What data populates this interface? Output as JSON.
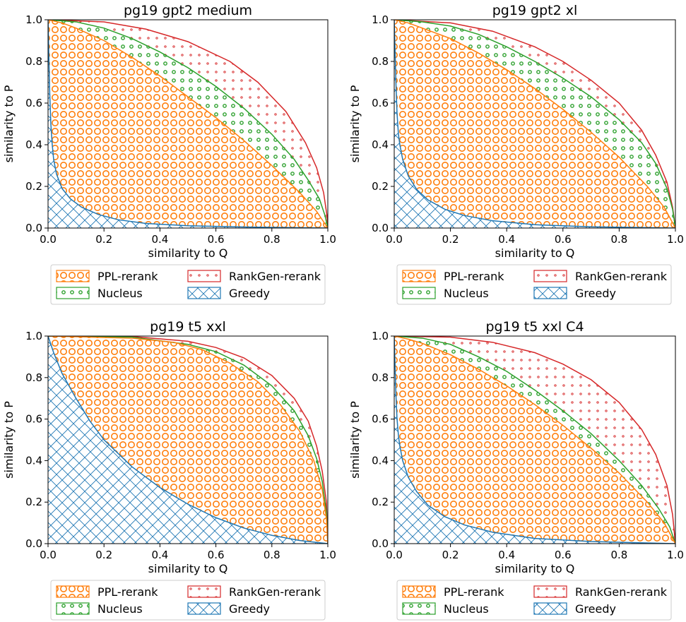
{
  "colors": {
    "ppl": "#ff7f0e",
    "nucleus": "#2ca02c",
    "rankgen": "#d62728",
    "greedy": "#1f77b4"
  },
  "chart_data": [
    {
      "type": "area",
      "title": "pg19 gpt2 medium",
      "xlabel": "similarity to Q",
      "ylabel": "similarity to P",
      "xlim": [
        0,
        1
      ],
      "ylim": [
        0,
        1
      ],
      "xticks": [
        "0.0",
        "0.2",
        "0.4",
        "0.6",
        "0.8",
        "1.0"
      ],
      "yticks": [
        "0.0",
        "0.2",
        "0.4",
        "0.6",
        "0.8",
        "1.0"
      ],
      "legend": {
        "placement": "below",
        "entries": [
          "PPL-rerank",
          "RankGen-rerank",
          "Nucleus",
          "Greedy"
        ]
      },
      "series": [
        {
          "name": "RankGen-rerank",
          "color": "#d62728",
          "hatch": "small-dots",
          "points": [
            [
              0,
              1
            ],
            [
              0.2,
              0.99
            ],
            [
              0.35,
              0.955
            ],
            [
              0.5,
              0.895
            ],
            [
              0.65,
              0.8
            ],
            [
              0.75,
              0.7
            ],
            [
              0.85,
              0.56
            ],
            [
              0.92,
              0.41
            ],
            [
              0.96,
              0.29
            ],
            [
              0.985,
              0.17
            ],
            [
              0.997,
              0.06
            ],
            [
              1.0,
              0.0
            ]
          ]
        },
        {
          "name": "Nucleus",
          "color": "#2ca02c",
          "hatch": "small-circles",
          "points": [
            [
              0,
              1
            ],
            [
              0.1,
              0.99
            ],
            [
              0.2,
              0.96
            ],
            [
              0.3,
              0.91
            ],
            [
              0.4,
              0.845
            ],
            [
              0.5,
              0.77
            ],
            [
              0.6,
              0.68
            ],
            [
              0.7,
              0.575
            ],
            [
              0.8,
              0.45
            ],
            [
              0.88,
              0.33
            ],
            [
              0.93,
              0.23
            ],
            [
              0.97,
              0.14
            ],
            [
              0.99,
              0.06
            ],
            [
              1.0,
              0.0
            ]
          ]
        },
        {
          "name": "PPL-rerank",
          "color": "#ff7f0e",
          "hatch": "large-circles",
          "points": [
            [
              0,
              1
            ],
            [
              0.05,
              0.985
            ],
            [
              0.1,
              0.96
            ],
            [
              0.2,
              0.9
            ],
            [
              0.3,
              0.82
            ],
            [
              0.4,
              0.73
            ],
            [
              0.5,
              0.63
            ],
            [
              0.6,
              0.53
            ],
            [
              0.7,
              0.42
            ],
            [
              0.8,
              0.3
            ],
            [
              0.9,
              0.17
            ],
            [
              0.96,
              0.08
            ],
            [
              1.0,
              0.0
            ]
          ]
        },
        {
          "name": "Greedy",
          "color": "#1f77b4",
          "hatch": "crosshatch",
          "points": [
            [
              0,
              1
            ],
            [
              0.003,
              0.82
            ],
            [
              0.006,
              0.65
            ],
            [
              0.01,
              0.5
            ],
            [
              0.015,
              0.4
            ],
            [
              0.02,
              0.33
            ],
            [
              0.03,
              0.26
            ],
            [
              0.05,
              0.19
            ],
            [
              0.08,
              0.14
            ],
            [
              0.12,
              0.1
            ],
            [
              0.18,
              0.065
            ],
            [
              0.25,
              0.04
            ],
            [
              0.35,
              0.022
            ],
            [
              0.5,
              0.011
            ],
            [
              0.7,
              0.005
            ],
            [
              1.0,
              0.0
            ]
          ]
        }
      ]
    },
    {
      "type": "area",
      "title": "pg19 gpt2 xl",
      "xlabel": "similarity to Q",
      "ylabel": "similarity to P",
      "xlim": [
        0,
        1
      ],
      "ylim": [
        0,
        1
      ],
      "xticks": [
        "0.0",
        "0.2",
        "0.4",
        "0.6",
        "0.8",
        "1.0"
      ],
      "yticks": [
        "0.0",
        "0.2",
        "0.4",
        "0.6",
        "0.8",
        "1.0"
      ],
      "legend": {
        "placement": "below",
        "entries": [
          "PPL-rerank",
          "RankGen-rerank",
          "Nucleus",
          "Greedy"
        ]
      },
      "series": [
        {
          "name": "RankGen-rerank",
          "color": "#d62728",
          "hatch": "small-dots",
          "points": [
            [
              0,
              1
            ],
            [
              0.2,
              0.985
            ],
            [
              0.35,
              0.945
            ],
            [
              0.5,
              0.87
            ],
            [
              0.6,
              0.8
            ],
            [
              0.7,
              0.71
            ],
            [
              0.8,
              0.6
            ],
            [
              0.88,
              0.47
            ],
            [
              0.93,
              0.35
            ],
            [
              0.97,
              0.22
            ],
            [
              0.99,
              0.1
            ],
            [
              1.0,
              0.0
            ]
          ]
        },
        {
          "name": "Nucleus",
          "color": "#2ca02c",
          "hatch": "small-circles",
          "points": [
            [
              0,
              1
            ],
            [
              0.1,
              0.99
            ],
            [
              0.2,
              0.97
            ],
            [
              0.3,
              0.93
            ],
            [
              0.4,
              0.87
            ],
            [
              0.5,
              0.8
            ],
            [
              0.6,
              0.72
            ],
            [
              0.7,
              0.63
            ],
            [
              0.8,
              0.52
            ],
            [
              0.88,
              0.41
            ],
            [
              0.93,
              0.31
            ],
            [
              0.97,
              0.19
            ],
            [
              0.99,
              0.09
            ],
            [
              1.0,
              0.0
            ]
          ]
        },
        {
          "name": "PPL-rerank",
          "color": "#ff7f0e",
          "hatch": "large-circles",
          "points": [
            [
              0,
              1
            ],
            [
              0.05,
              0.985
            ],
            [
              0.1,
              0.96
            ],
            [
              0.2,
              0.91
            ],
            [
              0.3,
              0.84
            ],
            [
              0.4,
              0.76
            ],
            [
              0.5,
              0.67
            ],
            [
              0.6,
              0.57
            ],
            [
              0.7,
              0.46
            ],
            [
              0.8,
              0.34
            ],
            [
              0.9,
              0.2
            ],
            [
              0.96,
              0.1
            ],
            [
              1.0,
              0.0
            ]
          ]
        },
        {
          "name": "Greedy",
          "color": "#1f77b4",
          "hatch": "crosshatch",
          "points": [
            [
              0,
              1
            ],
            [
              0.003,
              0.85
            ],
            [
              0.006,
              0.7
            ],
            [
              0.01,
              0.55
            ],
            [
              0.015,
              0.45
            ],
            [
              0.02,
              0.4
            ],
            [
              0.03,
              0.33
            ],
            [
              0.05,
              0.25
            ],
            [
              0.08,
              0.185
            ],
            [
              0.12,
              0.135
            ],
            [
              0.18,
              0.09
            ],
            [
              0.25,
              0.06
            ],
            [
              0.35,
              0.035
            ],
            [
              0.5,
              0.016
            ],
            [
              0.7,
              0.006
            ],
            [
              1.0,
              0.0
            ]
          ]
        }
      ]
    },
    {
      "type": "area",
      "title": "pg19 t5 xxl",
      "xlabel": "similarity to Q",
      "ylabel": "similarity to P",
      "xlim": [
        0,
        1
      ],
      "ylim": [
        0,
        1
      ],
      "xticks": [
        "0.0",
        "0.2",
        "0.4",
        "0.6",
        "0.8",
        "1.0"
      ],
      "yticks": [
        "0.0",
        "0.2",
        "0.4",
        "0.6",
        "0.8",
        "1.0"
      ],
      "legend": {
        "placement": "below",
        "entries": [
          "PPL-rerank",
          "RankGen-rerank",
          "Nucleus",
          "Greedy"
        ]
      },
      "series": [
        {
          "name": "RankGen-rerank",
          "color": "#d62728",
          "hatch": "small-dots",
          "points": [
            [
              0,
              1
            ],
            [
              0.3,
              0.998
            ],
            [
              0.5,
              0.975
            ],
            [
              0.6,
              0.945
            ],
            [
              0.7,
              0.895
            ],
            [
              0.8,
              0.81
            ],
            [
              0.88,
              0.7
            ],
            [
              0.93,
              0.59
            ],
            [
              0.96,
              0.47
            ],
            [
              0.98,
              0.35
            ],
            [
              0.995,
              0.2
            ],
            [
              1.0,
              0.0
            ]
          ]
        },
        {
          "name": "Nucleus",
          "color": "#2ca02c",
          "hatch": "small-circles",
          "points": [
            [
              0,
              1
            ],
            [
              0.3,
              0.995
            ],
            [
              0.5,
              0.96
            ],
            [
              0.6,
              0.925
            ],
            [
              0.7,
              0.86
            ],
            [
              0.8,
              0.76
            ],
            [
              0.88,
              0.64
            ],
            [
              0.93,
              0.52
            ],
            [
              0.96,
              0.41
            ],
            [
              0.98,
              0.3
            ],
            [
              0.995,
              0.15
            ],
            [
              1.0,
              0.0
            ]
          ]
        },
        {
          "name": "PPL-rerank",
          "color": "#ff7f0e",
          "hatch": "large-circles",
          "points": [
            [
              0,
              1
            ],
            [
              0.3,
              0.99
            ],
            [
              0.45,
              0.97
            ],
            [
              0.55,
              0.935
            ],
            [
              0.65,
              0.87
            ],
            [
              0.75,
              0.78
            ],
            [
              0.83,
              0.67
            ],
            [
              0.9,
              0.54
            ],
            [
              0.95,
              0.4
            ],
            [
              0.98,
              0.26
            ],
            [
              0.995,
              0.12
            ],
            [
              1.0,
              0.0
            ]
          ]
        },
        {
          "name": "Greedy",
          "color": "#1f77b4",
          "hatch": "crosshatch",
          "points": [
            [
              0,
              1
            ],
            [
              0.02,
              0.92
            ],
            [
              0.05,
              0.82
            ],
            [
              0.1,
              0.7
            ],
            [
              0.15,
              0.59
            ],
            [
              0.2,
              0.5
            ],
            [
              0.3,
              0.37
            ],
            [
              0.4,
              0.27
            ],
            [
              0.5,
              0.19
            ],
            [
              0.6,
              0.125
            ],
            [
              0.7,
              0.075
            ],
            [
              0.8,
              0.04
            ],
            [
              0.9,
              0.015
            ],
            [
              1.0,
              0.0
            ]
          ]
        }
      ]
    },
    {
      "type": "area",
      "title": "pg19 t5 xxl C4",
      "xlabel": "similarity to Q",
      "ylabel": "similarity to P",
      "xlim": [
        0,
        1
      ],
      "ylim": [
        0,
        1
      ],
      "xticks": [
        "0.0",
        "0.2",
        "0.4",
        "0.6",
        "0.8",
        "1.0"
      ],
      "yticks": [
        "0.0",
        "0.2",
        "0.4",
        "0.6",
        "0.8",
        "1.0"
      ],
      "legend": {
        "placement": "below",
        "entries": [
          "PPL-rerank",
          "RankGen-rerank",
          "Nucleus",
          "Greedy"
        ]
      },
      "series": [
        {
          "name": "RankGen-rerank",
          "color": "#d62728",
          "hatch": "small-dots",
          "points": [
            [
              0,
              1
            ],
            [
              0.2,
              0.995
            ],
            [
              0.35,
              0.97
            ],
            [
              0.5,
              0.92
            ],
            [
              0.6,
              0.865
            ],
            [
              0.7,
              0.79
            ],
            [
              0.8,
              0.68
            ],
            [
              0.88,
              0.55
            ],
            [
              0.93,
              0.43
            ],
            [
              0.97,
              0.28
            ],
            [
              0.99,
              0.14
            ],
            [
              1.0,
              0.0
            ]
          ]
        },
        {
          "name": "Nucleus",
          "color": "#2ca02c",
          "hatch": "small-circles",
          "points": [
            [
              0,
              1
            ],
            [
              0.1,
              0.99
            ],
            [
              0.2,
              0.96
            ],
            [
              0.3,
              0.9
            ],
            [
              0.4,
              0.83
            ],
            [
              0.5,
              0.74
            ],
            [
              0.6,
              0.64
            ],
            [
              0.7,
              0.53
            ],
            [
              0.8,
              0.4
            ],
            [
              0.88,
              0.28
            ],
            [
              0.94,
              0.17
            ],
            [
              0.98,
              0.08
            ],
            [
              1.0,
              0.0
            ]
          ]
        },
        {
          "name": "PPL-rerank",
          "color": "#ff7f0e",
          "hatch": "large-circles",
          "points": [
            [
              0,
              1
            ],
            [
              0.05,
              0.985
            ],
            [
              0.1,
              0.965
            ],
            [
              0.2,
              0.91
            ],
            [
              0.3,
              0.84
            ],
            [
              0.4,
              0.76
            ],
            [
              0.5,
              0.67
            ],
            [
              0.6,
              0.57
            ],
            [
              0.7,
              0.46
            ],
            [
              0.8,
              0.34
            ],
            [
              0.9,
              0.2
            ],
            [
              0.96,
              0.1
            ],
            [
              1.0,
              0.0
            ]
          ]
        },
        {
          "name": "Greedy",
          "color": "#1f77b4",
          "hatch": "crosshatch",
          "points": [
            [
              0,
              1
            ],
            [
              0.003,
              0.86
            ],
            [
              0.006,
              0.72
            ],
            [
              0.01,
              0.6
            ],
            [
              0.015,
              0.52
            ],
            [
              0.02,
              0.47
            ],
            [
              0.03,
              0.4
            ],
            [
              0.05,
              0.32
            ],
            [
              0.08,
              0.25
            ],
            [
              0.12,
              0.185
            ],
            [
              0.18,
              0.13
            ],
            [
              0.25,
              0.09
            ],
            [
              0.35,
              0.055
            ],
            [
              0.5,
              0.025
            ],
            [
              0.7,
              0.01
            ],
            [
              1.0,
              0.0
            ]
          ]
        }
      ]
    }
  ]
}
